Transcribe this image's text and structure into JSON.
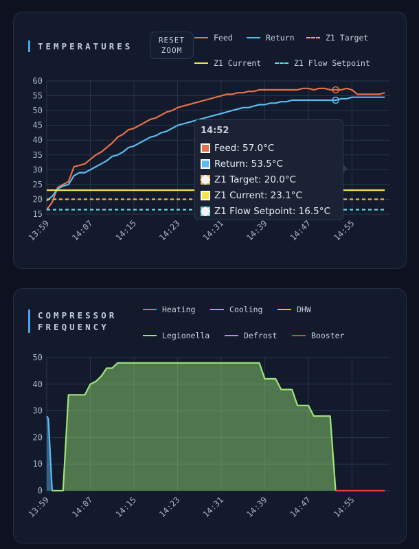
{
  "temperatures": {
    "title": "TEMPERATURES",
    "reset_zoom": "RESET\nZOOM",
    "legend": [
      {
        "label": "Feed",
        "color": "#e8704a",
        "dash": false
      },
      {
        "label": "Return",
        "color": "#5bbcf0",
        "dash": false
      },
      {
        "label": "Z1 Target",
        "color": "#f0b24a",
        "dash": true
      },
      {
        "label": "Z1 Current",
        "color": "#f5e64a",
        "dash": false
      },
      {
        "label": "Z1 Flow Setpoint",
        "color": "#5ae0e6",
        "dash": true
      }
    ],
    "tooltip": {
      "time": "14:52",
      "rows": [
        {
          "label": "Feed: 57.0°C",
          "color": "#e8704a",
          "style": "solid"
        },
        {
          "label": "Return: 53.5°C",
          "color": "#5bbcf0",
          "style": "solid"
        },
        {
          "label": "Z1 Target: 20.0°C",
          "color": "#f0b24a",
          "style": "dashed"
        },
        {
          "label": "Z1 Current: 23.1°C",
          "color": "#f5e64a",
          "style": "solid"
        },
        {
          "label": "Z1 Flow Setpoint: 16.5°C",
          "color": "#5ae0e6",
          "style": "dashed"
        }
      ]
    }
  },
  "compressor": {
    "title": "COMPRESSOR\nFREQUENCY",
    "legend": [
      {
        "label": "Heating",
        "color": "#e8704a"
      },
      {
        "label": "Cooling",
        "color": "#5bbcf0"
      },
      {
        "label": "DHW",
        "color": "#f0b24a"
      },
      {
        "label": "Legionella",
        "color": "#9ee67a"
      },
      {
        "label": "Defrost",
        "color": "#b48cf0"
      },
      {
        "label": "Booster",
        "color": "#e84040"
      }
    ]
  },
  "chart_data": [
    {
      "type": "line",
      "x_ticks": [
        "13:59",
        "14:07",
        "14:15",
        "14:23",
        "14:31",
        "14:39",
        "14:47",
        "14:55"
      ],
      "x_tick_minutes": [
        0,
        8,
        16,
        24,
        32,
        40,
        48,
        56
      ],
      "xlim": [
        0,
        63
      ],
      "ylim": [
        15,
        60
      ],
      "y_ticks": [
        15,
        20,
        25,
        30,
        35,
        40,
        45,
        50,
        55,
        60
      ],
      "hover_minute": 53,
      "series": [
        {
          "name": "Feed",
          "color": "#e8704a",
          "dash": false,
          "points": [
            [
              0,
              16.5
            ],
            [
              1,
              19
            ],
            [
              2,
              24
            ],
            [
              3,
              25
            ],
            [
              4,
              26
            ],
            [
              5,
              31
            ],
            [
              6,
              31.5
            ],
            [
              7,
              32
            ],
            [
              8,
              33.5
            ],
            [
              9,
              35
            ],
            [
              10,
              36
            ],
            [
              11,
              37.5
            ],
            [
              12,
              39
            ],
            [
              13,
              41
            ],
            [
              14,
              42
            ],
            [
              15,
              43.5
            ],
            [
              16,
              44
            ],
            [
              17,
              45
            ],
            [
              18,
              46
            ],
            [
              19,
              47
            ],
            [
              20,
              47.5
            ],
            [
              21,
              48.5
            ],
            [
              22,
              49.5
            ],
            [
              23,
              50
            ],
            [
              24,
              51
            ],
            [
              25,
              51.5
            ],
            [
              26,
              52
            ],
            [
              27,
              52.5
            ],
            [
              28,
              53
            ],
            [
              29,
              53.5
            ],
            [
              30,
              54
            ],
            [
              31,
              54.5
            ],
            [
              32,
              55
            ],
            [
              33,
              55.5
            ],
            [
              34,
              55.5
            ],
            [
              35,
              56
            ],
            [
              36,
              56
            ],
            [
              37,
              56.5
            ],
            [
              38,
              56.5
            ],
            [
              39,
              57
            ],
            [
              40,
              57
            ],
            [
              42,
              57
            ],
            [
              44,
              57
            ],
            [
              46,
              57
            ],
            [
              47,
              57.5
            ],
            [
              48,
              57.5
            ],
            [
              49,
              57
            ],
            [
              50,
              57.5
            ],
            [
              51,
              57.5
            ],
            [
              52,
              57
            ],
            [
              53,
              57
            ],
            [
              54,
              57
            ],
            [
              55,
              57.5
            ],
            [
              56,
              57
            ],
            [
              57,
              55.5
            ],
            [
              58,
              55.5
            ],
            [
              60,
              55.5
            ],
            [
              61,
              55.5
            ],
            [
              62,
              56
            ]
          ]
        },
        {
          "name": "Return",
          "color": "#5bbcf0",
          "dash": false,
          "points": [
            [
              0,
              19.5
            ],
            [
              1,
              21
            ],
            [
              2,
              23.5
            ],
            [
              3,
              24.5
            ],
            [
              4,
              25
            ],
            [
              5,
              28
            ],
            [
              6,
              29
            ],
            [
              7,
              29
            ],
            [
              8,
              30
            ],
            [
              9,
              31
            ],
            [
              10,
              32
            ],
            [
              11,
              33
            ],
            [
              12,
              34.5
            ],
            [
              13,
              35
            ],
            [
              14,
              36
            ],
            [
              15,
              37.5
            ],
            [
              16,
              38
            ],
            [
              17,
              39
            ],
            [
              18,
              40
            ],
            [
              19,
              41
            ],
            [
              20,
              41.5
            ],
            [
              21,
              42.5
            ],
            [
              22,
              43
            ],
            [
              23,
              44
            ],
            [
              24,
              45
            ],
            [
              25,
              45.5
            ],
            [
              26,
              46
            ],
            [
              27,
              46.5
            ],
            [
              28,
              47
            ],
            [
              29,
              47.5
            ],
            [
              30,
              48
            ],
            [
              31,
              48.5
            ],
            [
              32,
              49
            ],
            [
              33,
              49.5
            ],
            [
              34,
              50
            ],
            [
              35,
              50.5
            ],
            [
              36,
              51
            ],
            [
              37,
              51
            ],
            [
              38,
              51.5
            ],
            [
              39,
              52
            ],
            [
              40,
              52
            ],
            [
              41,
              52.5
            ],
            [
              42,
              52.5
            ],
            [
              43,
              53
            ],
            [
              44,
              53
            ],
            [
              45,
              53.5
            ],
            [
              46,
              53.5
            ],
            [
              48,
              53.5
            ],
            [
              50,
              53.5
            ],
            [
              51,
              53.5
            ],
            [
              52,
              53.5
            ],
            [
              53,
              53.5
            ],
            [
              54,
              54
            ],
            [
              55,
              54
            ],
            [
              56,
              54.5
            ],
            [
              57,
              54.5
            ],
            [
              60,
              54.5
            ],
            [
              62,
              54.5
            ]
          ]
        },
        {
          "name": "Z1 Target",
          "color": "#f0b24a",
          "dash": true,
          "points": [
            [
              0,
              20
            ],
            [
              62,
              20
            ]
          ]
        },
        {
          "name": "Z1 Current",
          "color": "#f5e64a",
          "dash": false,
          "points": [
            [
              0,
              23.1
            ],
            [
              62,
              23.1
            ]
          ]
        },
        {
          "name": "Z1 Flow Setpoint",
          "color": "#5ae0e6",
          "dash": true,
          "points": [
            [
              0,
              16.5
            ],
            [
              62,
              16.5
            ]
          ]
        }
      ]
    },
    {
      "type": "area",
      "x_ticks": [
        "13:59",
        "14:07",
        "14:15",
        "14:23",
        "14:31",
        "14:39",
        "14:47",
        "14:55"
      ],
      "x_tick_minutes": [
        0,
        8,
        16,
        24,
        32,
        40,
        48,
        56
      ],
      "xlim": [
        0,
        63
      ],
      "ylim": [
        0,
        50
      ],
      "y_ticks": [
        0,
        10,
        20,
        30,
        40,
        50
      ],
      "series": [
        {
          "name": "Cooling",
          "color": "#5bbcf0",
          "points": [
            [
              0,
              28
            ],
            [
              0.3,
              27
            ],
            [
              1,
              0
            ]
          ]
        },
        {
          "name": "Legionella",
          "color": "#9ee67a",
          "points": [
            [
              1,
              0
            ],
            [
              3,
              0
            ],
            [
              4,
              36
            ],
            [
              5,
              36
            ],
            [
              7,
              36
            ],
            [
              8,
              40
            ],
            [
              9,
              41
            ],
            [
              10,
              43
            ],
            [
              11,
              46
            ],
            [
              12,
              46
            ],
            [
              13,
              48
            ],
            [
              16,
              48
            ],
            [
              24,
              48
            ],
            [
              32,
              48
            ],
            [
              39,
              48
            ],
            [
              40,
              42
            ],
            [
              42,
              42
            ],
            [
              43,
              38
            ],
            [
              45,
              38
            ],
            [
              46,
              32
            ],
            [
              48,
              32
            ],
            [
              49,
              28
            ],
            [
              51,
              28
            ],
            [
              52,
              28
            ],
            [
              53,
              0
            ]
          ]
        },
        {
          "name": "Booster",
          "color": "#e84040",
          "points": [
            [
              53,
              0
            ],
            [
              62,
              0
            ]
          ]
        }
      ]
    }
  ]
}
